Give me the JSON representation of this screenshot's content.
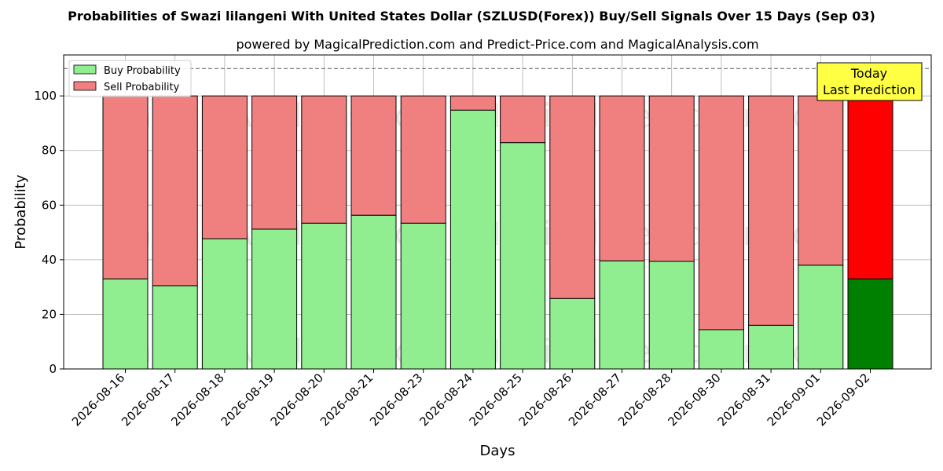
{
  "chart_data": {
    "type": "bar",
    "stacked": true,
    "title": "Probabilities of Swazi lilangeni With United States Dollar (SZLUSD(Forex)) Buy/Sell Signals Over 15 Days (Sep 03)",
    "subtitle": "powered by MagicalPrediction.com and Predict-Price.com and MagicalAnalysis.com",
    "xlabel": "Days",
    "ylabel": "Probability",
    "ylim": [
      0,
      115
    ],
    "yticks": [
      0,
      20,
      40,
      60,
      80,
      100
    ],
    "reference_line": 110,
    "grid": true,
    "legend_position": "top-left",
    "categories": [
      "2026-08-16",
      "2026-08-17",
      "2026-08-18",
      "2026-08-19",
      "2026-08-20",
      "2026-08-21",
      "2026-08-23",
      "2026-08-24",
      "2026-08-25",
      "2026-08-26",
      "2026-08-27",
      "2026-08-28",
      "2026-08-30",
      "2026-08-31",
      "2026-09-01",
      "2026-09-02"
    ],
    "series": [
      {
        "name": "Buy Probability",
        "color": "#90ee90",
        "highlight_color": "#008000",
        "values": [
          33,
          30.5,
          47.7,
          51.2,
          53.4,
          56.3,
          53.4,
          94.8,
          82.9,
          25.8,
          39.6,
          39.4,
          14.4,
          16,
          38,
          33
        ]
      },
      {
        "name": "Sell Probability",
        "color": "#f08080",
        "highlight_color": "#ff0000",
        "values": [
          67,
          69.5,
          52.3,
          48.8,
          46.6,
          43.7,
          46.6,
          5.2,
          17.1,
          74.2,
          60.4,
          60.6,
          85.6,
          84,
          62,
          67
        ]
      }
    ],
    "highlight_index": 15,
    "annotation": {
      "line1": "Today",
      "line2": "Last Prediction",
      "color": "#ffff44"
    },
    "watermarks": [
      "MagicalAnalysis.com",
      "MagicalPrediction.com"
    ]
  }
}
